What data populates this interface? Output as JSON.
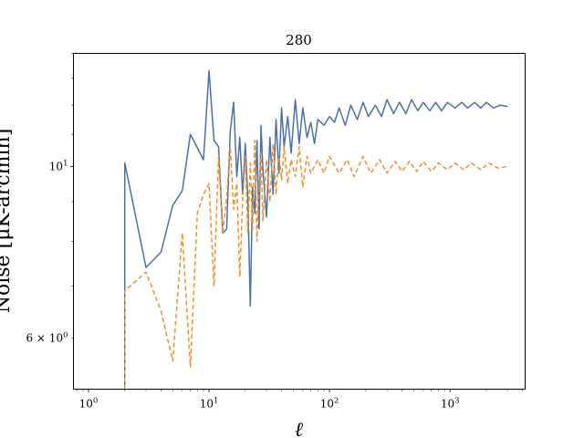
{
  "chart_data": {
    "type": "line",
    "title": "280",
    "xlabel": "ℓ",
    "ylabel": "Noise [μK-arcmin]",
    "xscale": "log",
    "yscale": "log",
    "xlim": [
      0.75,
      4200
    ],
    "ylim": [
      5.15,
      14.0
    ],
    "grid": false,
    "legend": "none",
    "x_major_ticks": [
      {
        "value": 1,
        "base": "10",
        "exp": "0"
      },
      {
        "value": 10,
        "base": "10",
        "exp": "1"
      },
      {
        "value": 100,
        "base": "10",
        "exp": "2"
      },
      {
        "value": 1000,
        "base": "10",
        "exp": "3"
      }
    ],
    "y_ticks": [
      {
        "value": 10,
        "base": "10",
        "exp": "1",
        "prefix": ""
      },
      {
        "value": 6,
        "base": "10",
        "exp": "0",
        "prefix": "6 × "
      }
    ],
    "series": [
      {
        "color": "#4a72a5",
        "dash": "solid",
        "points": [
          [
            2,
            5.0
          ],
          [
            2,
            10.1
          ],
          [
            3,
            7.4
          ],
          [
            4,
            7.75
          ],
          [
            5,
            8.9
          ],
          [
            6,
            9.3
          ],
          [
            7,
            11.0
          ],
          [
            9,
            10.2
          ],
          [
            10,
            13.3
          ],
          [
            11,
            10.8
          ],
          [
            12,
            10.6
          ],
          [
            13,
            8.2
          ],
          [
            14,
            8.3
          ],
          [
            15,
            11.1
          ],
          [
            16,
            12.1
          ],
          [
            17,
            9.7
          ],
          [
            18,
            10.9
          ],
          [
            19,
            9.2
          ],
          [
            20,
            10.7
          ],
          [
            21,
            9.1
          ],
          [
            22,
            6.6
          ],
          [
            23,
            9.4
          ],
          [
            24,
            8.7
          ],
          [
            25,
            10.8
          ],
          [
            26,
            8.3
          ],
          [
            27,
            11.3
          ],
          [
            28,
            9.9
          ],
          [
            30,
            8.6
          ],
          [
            32,
            10.9
          ],
          [
            34,
            9.2
          ],
          [
            36,
            11.5
          ],
          [
            38,
            9.8
          ],
          [
            40,
            11.9
          ],
          [
            42,
            10.6
          ],
          [
            45,
            11.6
          ],
          [
            48,
            10.4
          ],
          [
            52,
            12.2
          ],
          [
            56,
            10.7
          ],
          [
            60,
            11.9
          ],
          [
            65,
            10.9
          ],
          [
            70,
            11.4
          ],
          [
            75,
            10.7
          ],
          [
            80,
            11.5
          ],
          [
            90,
            11.3
          ],
          [
            100,
            11.6
          ],
          [
            110,
            11.4
          ],
          [
            120,
            11.9
          ],
          [
            135,
            11.3
          ],
          [
            150,
            12.0
          ],
          [
            170,
            11.5
          ],
          [
            190,
            12.1
          ],
          [
            210,
            11.6
          ],
          [
            240,
            12.0
          ],
          [
            270,
            11.6
          ],
          [
            300,
            12.2
          ],
          [
            340,
            11.7
          ],
          [
            380,
            12.1
          ],
          [
            430,
            11.7
          ],
          [
            480,
            12.2
          ],
          [
            540,
            11.8
          ],
          [
            600,
            12.1
          ],
          [
            680,
            11.8
          ],
          [
            760,
            12.1
          ],
          [
            850,
            11.8
          ],
          [
            950,
            12.1
          ],
          [
            1100,
            11.9
          ],
          [
            1250,
            12.1
          ],
          [
            1400,
            11.9
          ],
          [
            1600,
            12.1
          ],
          [
            1800,
            11.9
          ],
          [
            2000,
            12.1
          ],
          [
            2300,
            11.9
          ],
          [
            2600,
            12.0
          ],
          [
            3000,
            11.95
          ]
        ]
      },
      {
        "color": "#f28e2b",
        "dash": "5,3",
        "points": [
          [
            2,
            5.0
          ],
          [
            2,
            6.9
          ],
          [
            3,
            7.3
          ],
          [
            4,
            6.5
          ],
          [
            5,
            5.6
          ],
          [
            6,
            8.2
          ],
          [
            7,
            5.5
          ],
          [
            8,
            8.7
          ],
          [
            9,
            9.2
          ],
          [
            10,
            9.5
          ],
          [
            11,
            7.0
          ],
          [
            12,
            10.3
          ],
          [
            13,
            8.2
          ],
          [
            14,
            9.1
          ],
          [
            15,
            10.6
          ],
          [
            16,
            8.8
          ],
          [
            17,
            9.5
          ],
          [
            18,
            7.2
          ],
          [
            19,
            9.0
          ],
          [
            20,
            10.3
          ],
          [
            21,
            8.2
          ],
          [
            22,
            10.1
          ],
          [
            23,
            8.3
          ],
          [
            24,
            10.8
          ],
          [
            25,
            8.0
          ],
          [
            26,
            9.4
          ],
          [
            27,
            10.4
          ],
          [
            28,
            8.5
          ],
          [
            30,
            10.2
          ],
          [
            32,
            9.0
          ],
          [
            34,
            10.7
          ],
          [
            36,
            9.2
          ],
          [
            38,
            10.4
          ],
          [
            40,
            9.6
          ],
          [
            42,
            10.6
          ],
          [
            45,
            9.5
          ],
          [
            48,
            10.2
          ],
          [
            52,
            9.7
          ],
          [
            56,
            10.6
          ],
          [
            60,
            9.4
          ],
          [
            65,
            10.3
          ],
          [
            70,
            9.8
          ],
          [
            80,
            10.2
          ],
          [
            90,
            9.8
          ],
          [
            100,
            10.3
          ],
          [
            120,
            9.8
          ],
          [
            140,
            10.2
          ],
          [
            160,
            9.7
          ],
          [
            190,
            10.3
          ],
          [
            220,
            9.8
          ],
          [
            260,
            10.2
          ],
          [
            300,
            9.8
          ],
          [
            350,
            10.15
          ],
          [
            400,
            9.85
          ],
          [
            460,
            10.15
          ],
          [
            530,
            9.85
          ],
          [
            600,
            10.15
          ],
          [
            700,
            9.85
          ],
          [
            800,
            10.1
          ],
          [
            950,
            9.9
          ],
          [
            1100,
            10.1
          ],
          [
            1300,
            9.9
          ],
          [
            1500,
            10.1
          ],
          [
            1800,
            9.9
          ],
          [
            2100,
            10.1
          ],
          [
            2500,
            9.95
          ],
          [
            3000,
            10.0
          ]
        ]
      }
    ]
  }
}
